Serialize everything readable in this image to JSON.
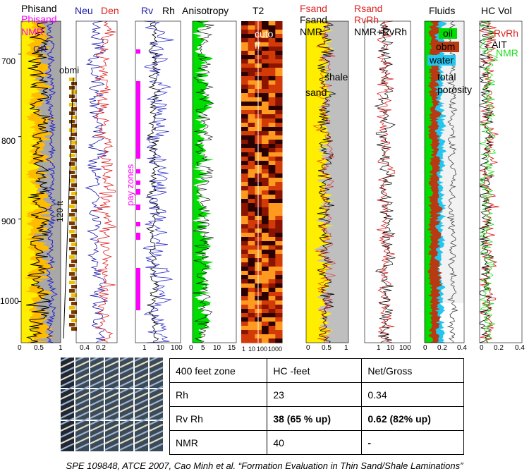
{
  "colors": {
    "gr": "#2222cc",
    "neu": "#1a1aaa",
    "den": "#dd2222",
    "magenta": "#ff00ff",
    "green": "#00dd00",
    "yellow": "#ffee00",
    "orange": "#ffbb00",
    "grey": "#a8a8a8",
    "obm": "#b83a12",
    "water": "#22c6ee",
    "nmr_green": "#22dd22"
  },
  "depth_labels": [
    "700",
    "800",
    "900",
    "1000"
  ],
  "tracks": {
    "t1": {
      "title1": "Phisand",
      "title2": "Phisand",
      "title3": "NMR",
      "ticks": [
        "0",
        "0.5",
        "1"
      ],
      "gr": "GR",
      "obmi": "obmi",
      "feet": "120 ft"
    },
    "t2": {
      "title1": "Neu",
      "title2": "Den",
      "ticks": [
        "0.4",
        "0.2"
      ]
    },
    "t3": {
      "title1": "Rv",
      "title2": "Rh",
      "ticks": [
        "1",
        "10",
        "100"
      ],
      "pay": "pay zones"
    },
    "t4": {
      "title": "Anisotropy",
      "ticks": [
        "0",
        "5",
        "10",
        "15"
      ]
    },
    "t5": {
      "title": "T2",
      "ticks": [
        "1",
        "10",
        "100",
        "1000"
      ],
      "cutoff1": "cuto",
      "cutoff2": "ff"
    },
    "t6": {
      "title1": "Fsand",
      "title2": "Fsand",
      "title3": "NMR",
      "ticks": [
        "0",
        "0.5",
        "1"
      ],
      "shale": "shale",
      "sand": "sand"
    },
    "t7": {
      "title1": "Rsand",
      "title2": "RvRh",
      "title3": "NMR+RvRh",
      "ticks": [
        "1",
        "10",
        "100"
      ]
    },
    "t8": {
      "title": "Fluids",
      "ticks": [
        "0",
        "0.2",
        "0.4"
      ],
      "oil": "oil",
      "obm": "obm",
      "water": "water",
      "total1": "total",
      "total2": "porosity"
    },
    "t9": {
      "title": "HC Vol",
      "ticks": [
        "0",
        "0.2",
        "0.4"
      ],
      "rvrh": "RvRh",
      "ait": "AIT",
      "nmr": "NMR"
    }
  },
  "table": {
    "headers": [
      "400 feet zone",
      "HC -feet",
      "Net/Gross"
    ],
    "rows": [
      [
        "Rh",
        "23",
        "0.34"
      ],
      [
        "Rv Rh",
        "38 (65 % up)",
        "0.62 (82% up)"
      ],
      [
        "NMR",
        "40",
        "-"
      ]
    ]
  },
  "caption": "SPE 109848, ATCE 2007, Cao Minh et al. “Formation Evaluation in Thin Sand/Shale Laminations”",
  "chart_data": {
    "type": "line",
    "y_axis": {
      "label": "",
      "range": [
        660,
        1050
      ],
      "ticks": [
        700,
        800,
        900,
        1000
      ]
    },
    "results_table": {
      "columns": [
        "400 feet zone",
        "HC -feet",
        "Net/Gross"
      ],
      "rows": [
        {
          "zone": "Rh",
          "hc_feet": 23,
          "net_gross": 0.34
        },
        {
          "zone": "Rv Rh",
          "hc_feet": 38,
          "net_gross": 0.62
        },
        {
          "zone": "NMR",
          "hc_feet": 40,
          "net_gross": null
        }
      ]
    }
  }
}
